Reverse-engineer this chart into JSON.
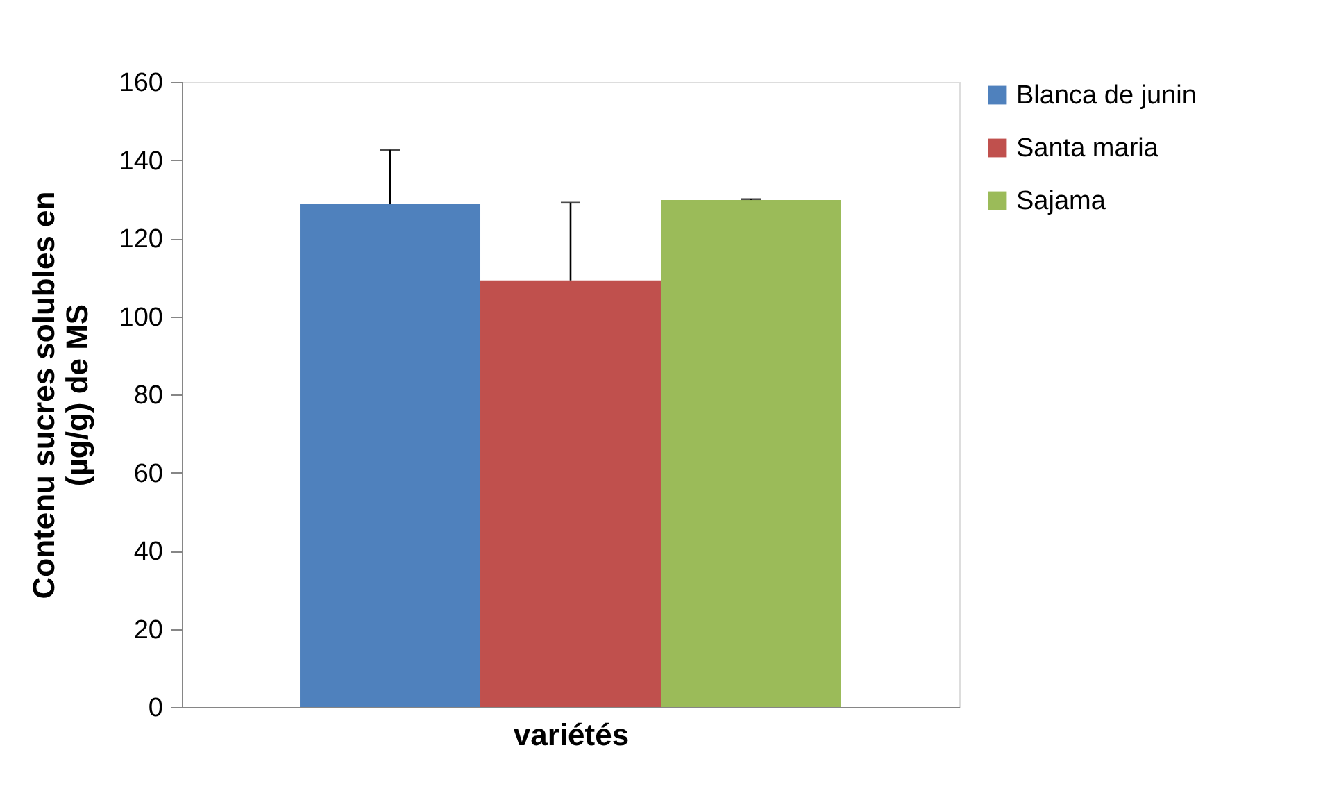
{
  "chart_data": {
    "type": "bar",
    "xlabel": "variétés",
    "ylabel": "Contenu sucres solubles en\n(µg/g) de MS",
    "categories": [
      null
    ],
    "series": [
      {
        "name": "Blanca de junin",
        "color": "#4f81bd",
        "values": [
          128.7
        ],
        "errors": [
          [
            128.7,
            142.6
          ]
        ]
      },
      {
        "name": "Santa maria",
        "color": "#c0504d",
        "values": [
          109.2
        ],
        "errors": [
          [
            109.2,
            129.1
          ]
        ]
      },
      {
        "name": "Sajama",
        "color": "#9bbb59",
        "values": [
          129.8
        ],
        "errors": [
          [
            129.8,
            130.0
          ]
        ]
      }
    ],
    "ylim": [
      0,
      160
    ],
    "yticks": [
      0,
      20,
      40,
      60,
      80,
      100,
      120,
      140,
      160
    ],
    "grid": false,
    "legend": "right",
    "tick_labels": "y"
  }
}
